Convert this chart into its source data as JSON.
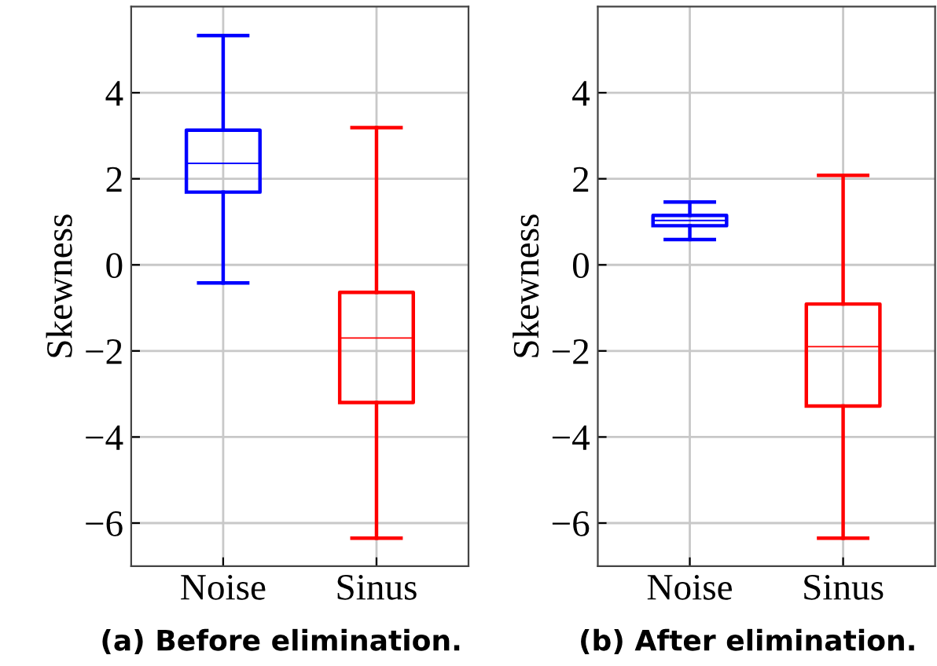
{
  "chart_data": [
    {
      "type": "box",
      "ylabel": "Skewness",
      "categories": [
        "Noise",
        "Sinus"
      ],
      "colors": [
        "#0000ff",
        "#ff0000"
      ],
      "boxes": [
        {
          "low": -0.42,
          "q1": 1.69,
          "median": 2.36,
          "q3": 3.13,
          "high": 5.33
        },
        {
          "low": -6.35,
          "q1": -3.2,
          "median": -1.7,
          "q3": -0.64,
          "high": 3.19
        }
      ],
      "ylim": [
        -7,
        6
      ],
      "yticks": [
        -6,
        -4,
        -2,
        0,
        2,
        4
      ],
      "grid": true,
      "annotations": [
        "(a) Before elimination."
      ]
    },
    {
      "type": "box",
      "ylabel": "Skewness",
      "categories": [
        "Noise",
        "Sinus"
      ],
      "colors": [
        "#0000ff",
        "#ff0000"
      ],
      "boxes": [
        {
          "low": 0.59,
          "q1": 0.91,
          "median": 1.03,
          "q3": 1.15,
          "high": 1.46
        },
        {
          "low": -6.35,
          "q1": -3.28,
          "median": -1.9,
          "q3": -0.91,
          "high": 2.08
        }
      ],
      "ylim": [
        -7,
        6
      ],
      "yticks": [
        -6,
        -4,
        -2,
        0,
        2,
        4
      ],
      "grid": true,
      "annotations": [
        "(b) After elimination."
      ]
    }
  ]
}
